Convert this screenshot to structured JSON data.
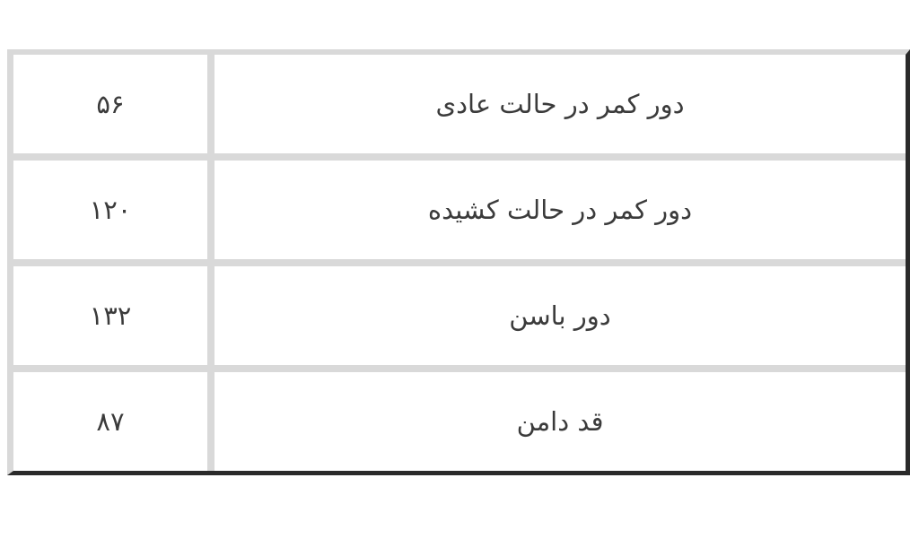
{
  "table": {
    "direction": "rtl",
    "description_columns": [
      "measurement-label",
      "measurement-value"
    ],
    "rows": [
      {
        "label": "دور کمر در حالت عادی",
        "value": "۵۶"
      },
      {
        "label": "دور کمر در حالت کشیده",
        "value": "۱۲۰"
      },
      {
        "label": "دور باسن",
        "value": "۱۳۲"
      },
      {
        "label": "قد دامن",
        "value": "۸۷"
      }
    ]
  },
  "chart_data": {
    "type": "table",
    "categories": [
      "دور کمر در حالت عادی",
      "دور کمر در حالت کشیده",
      "دور باسن",
      "قد دامن"
    ],
    "values": [
      56,
      120,
      132,
      87
    ],
    "values_display": [
      "۵۶",
      "۱۲۰",
      "۱۳۲",
      "۸۷"
    ],
    "title": "",
    "xlabel": "",
    "ylabel": ""
  },
  "colors": {
    "background": "#ffffff",
    "grid_border_light": "#d9d9d9",
    "frame_border_dark": "#2a2a2a",
    "text": "#3b3b3b"
  }
}
